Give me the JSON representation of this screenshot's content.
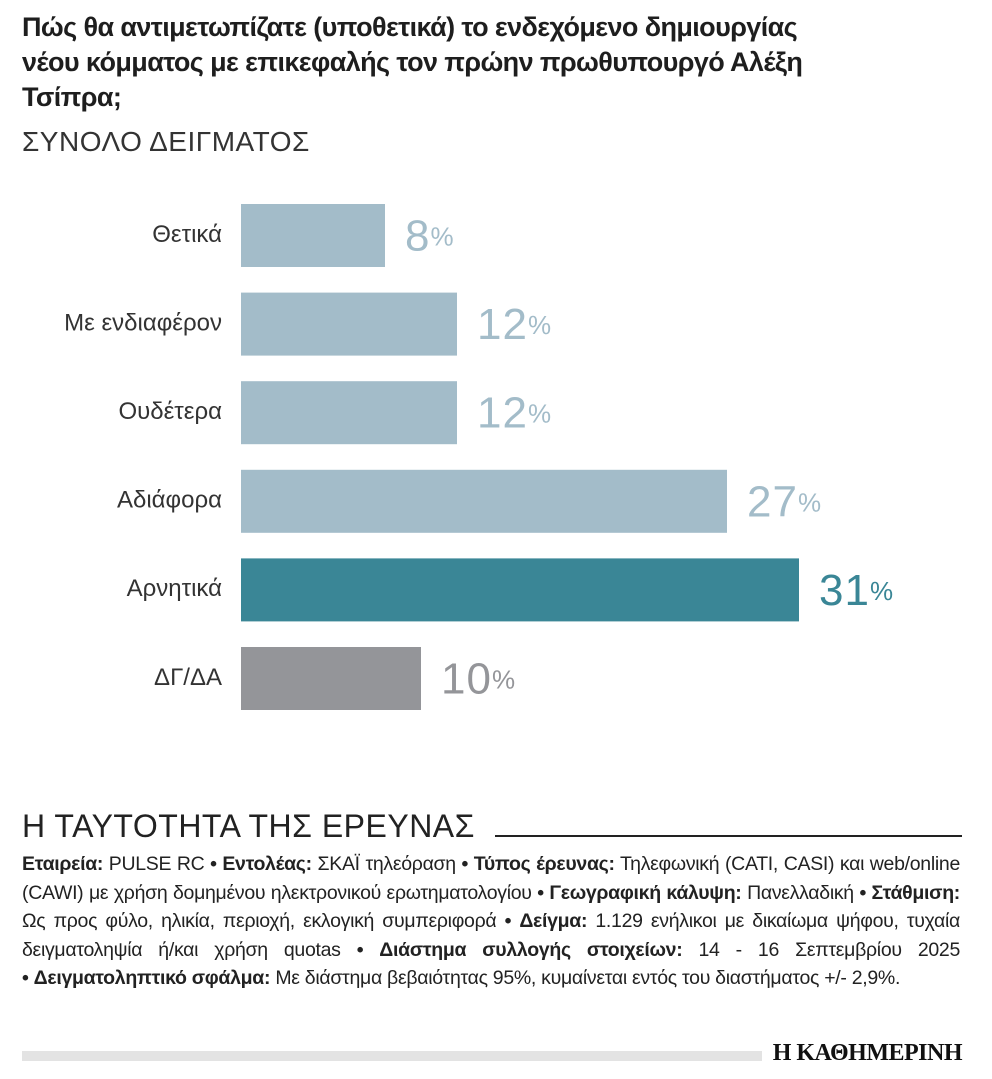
{
  "chart_data": {
    "type": "bar",
    "orientation": "horizontal",
    "title": "Πώς θα αντιμετωπίζατε (υποθετικά) το ενδεχόμενο δημιουργίας νέου κόμματος με επικεφαλής τον πρώην πρωθυπουργό Αλέξη Τσίπρα;",
    "subtitle": "ΣΥΝΟΛΟ ΔΕΙΓΜΑΤΟΣ",
    "categories": [
      "Θετικά",
      "Με ενδιαφέρον",
      "Ουδέτερα",
      "Αδιάφορα",
      "Αρνητικά",
      "ΔΓ/ΔΑ"
    ],
    "values": [
      8,
      12,
      12,
      27,
      31,
      10
    ],
    "value_labels": [
      "8%",
      "12%",
      "12%",
      "27%",
      "31%",
      "10%"
    ],
    "colors": [
      "#a3bcc9",
      "#a3bcc9",
      "#a3bcc9",
      "#a3bcc9",
      "#3a8696",
      "#949599"
    ],
    "label_colors": [
      "#a3bcc9",
      "#a3bcc9",
      "#a3bcc9",
      "#a3bcc9",
      "#3a8696",
      "#949599"
    ]
  },
  "survey_info": {
    "title": "Η ΤΑΥΤΟΤΗΤΑ ΤΗΣ ΕΡΕΥΝΑΣ",
    "items": [
      {
        "label": "Εταιρεία:",
        "text": "PULSE RC"
      },
      {
        "label": "Εντολέας:",
        "text": "ΣΚΑΪ τηλεόραση"
      },
      {
        "label": "Τύπος έρευνας:",
        "text": "Τηλεφωνική (CATI, CASI) και web/online (CAWI) με χρήση δομημένου ηλεκτρονικού ερωτηματολογίου"
      },
      {
        "label": "Γεωγραφική κάλυψη:",
        "text": "Πανελλαδική"
      },
      {
        "label": "Στάθμιση:",
        "text": "Ως προς φύλο, ηλικία, περιοχή, εκλογική συμπεριφορά"
      },
      {
        "label": "Δείγμα:",
        "text": "1.129 ενήλικοι με δικαίωμα ψήφου, τυχαία δειγματοληψία ή/και χρήση quotas"
      },
      {
        "label": "Διάστημα συλλογής στοιχείων:",
        "text": "14 - 16 Σεπτεμβρίου 2025"
      },
      {
        "label": "Δειγματοληπτικό σφάλμα:",
        "text": "Με διάστημα βεβαιότητας 95%, κυμαίνεται εντός του διαστήματος +/- 2,9%."
      }
    ]
  },
  "brand": "Η ΚΑΘΗΜΕΡΙΝΗ"
}
